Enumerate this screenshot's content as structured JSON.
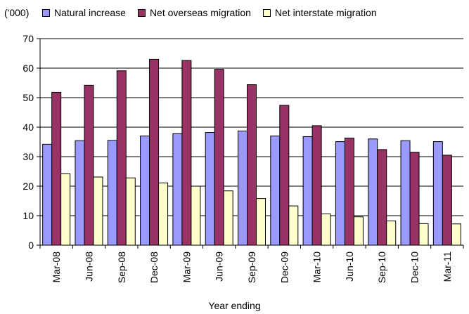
{
  "chart_data": {
    "type": "bar",
    "unit_label": "('000)",
    "xlabel": "Year ending",
    "ylabel": "",
    "ylim": [
      0,
      70
    ],
    "yticks": [
      0,
      10,
      20,
      30,
      40,
      50,
      60,
      70
    ],
    "grid": "horizontal",
    "legend_position": "top",
    "categories": [
      "Mar-08",
      "Jun-08",
      "Sep-08",
      "Dec-08",
      "Mar-09",
      "Jun-09",
      "Sep-09",
      "Dec-09",
      "Mar-10",
      "Jun-10",
      "Sep-10",
      "Dec-10",
      "Mar-11"
    ],
    "series": [
      {
        "name": "Natural increase",
        "color": "#9999ff",
        "values": [
          34.2,
          35.4,
          35.5,
          37.0,
          37.8,
          38.2,
          38.7,
          37.0,
          36.8,
          35.1,
          36.0,
          35.4,
          35.1
        ]
      },
      {
        "name": "Net overseas migration",
        "color": "#993366",
        "values": [
          51.8,
          54.2,
          59.1,
          63.0,
          62.6,
          59.6,
          54.4,
          47.4,
          40.5,
          36.3,
          32.4,
          31.5,
          30.5
        ]
      },
      {
        "name": "Net interstate migration",
        "color": "#ffffcc",
        "values": [
          24.2,
          23.1,
          22.8,
          21.1,
          20.0,
          18.4,
          15.8,
          13.3,
          10.6,
          9.6,
          8.2,
          7.3,
          7.2
        ]
      }
    ]
  }
}
